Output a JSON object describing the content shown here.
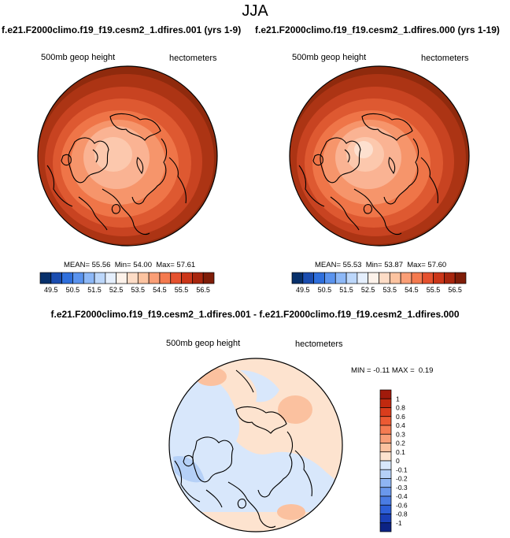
{
  "title": "JJA",
  "chart_data": [
    {
      "type": "heatmap",
      "projection": "polar stereographic, north pole",
      "title": "f.e21.F2000climo.f19_f19.cesm2_1.dfires.001 (yrs 1-9)",
      "field_label": "500mb geop height",
      "units": "hectometers",
      "stats": {
        "mean_label": "MEAN=",
        "mean": "55.56",
        "min_label": "Min=",
        "min": "54.00",
        "max_label": "Max=",
        "max": "57.61"
      },
      "colorbar": {
        "tick_labels": [
          "49.5",
          "50.5",
          "51.5",
          "52.5",
          "53.5",
          "54.5",
          "55.5",
          "56.5"
        ],
        "colors": [
          "#08306b",
          "#1b4db0",
          "#2f6fdc",
          "#5a93ee",
          "#8db8f7",
          "#bcd7fb",
          "#e5effd",
          "#fdf2ea",
          "#fddcc6",
          "#fcc3a0",
          "#fa9e76",
          "#f47a4f",
          "#e5512e",
          "#cb3619",
          "#a8260e",
          "#7f1d08"
        ]
      }
    },
    {
      "type": "heatmap",
      "projection": "polar stereographic, north pole",
      "title": "f.e21.F2000climo.f19_f19.cesm2_1.dfires.000 (yrs 1-19)",
      "field_label": "500mb geop height",
      "units": "hectometers",
      "stats": {
        "mean_label": "MEAN=",
        "mean": "55.53",
        "min_label": "Min=",
        "min": "53.87",
        "max_label": "Max=",
        "max": "57.60"
      },
      "colorbar": {
        "tick_labels": [
          "49.5",
          "50.5",
          "51.5",
          "52.5",
          "53.5",
          "54.5",
          "55.5",
          "56.5"
        ],
        "colors": [
          "#08306b",
          "#1b4db0",
          "#2f6fdc",
          "#5a93ee",
          "#8db8f7",
          "#bcd7fb",
          "#e5effd",
          "#fdf2ea",
          "#fddcc6",
          "#fcc3a0",
          "#fa9e76",
          "#f47a4f",
          "#e5512e",
          "#cb3619",
          "#a8260e",
          "#7f1d08"
        ]
      }
    },
    {
      "type": "heatmap",
      "projection": "polar stereographic, north pole",
      "title": "f.e21.F2000climo.f19_f19.cesm2_1.dfires.001 - f.e21.F2000climo.f19_f19.cesm2_1.dfires.000",
      "field_label": "500mb geop height",
      "units": "hectometers",
      "stats": {
        "min_label": "MIN =",
        "min": "-0.11",
        "max_label": "MAX =",
        "max": "0.19"
      },
      "colorbar": {
        "tick_labels": [
          "1",
          "0.8",
          "0.6",
          "0.4",
          "0.3",
          "0.2",
          "0.1",
          "0",
          "-0.1",
          "-0.2",
          "-0.3",
          "-0.4",
          "-0.6",
          "-0.8",
          "-1"
        ],
        "colors": [
          "#a11a0b",
          "#c1290f",
          "#d93d1d",
          "#ec5a33",
          "#f57b52",
          "#f89d77",
          "#fbc19f",
          "#fde3cf",
          "#d8e7fb",
          "#b5d0f7",
          "#8fb5f3",
          "#6a98ec",
          "#4a7ce4",
          "#2d5fd8",
          "#1a40b8",
          "#0c2384"
        ]
      }
    }
  ]
}
